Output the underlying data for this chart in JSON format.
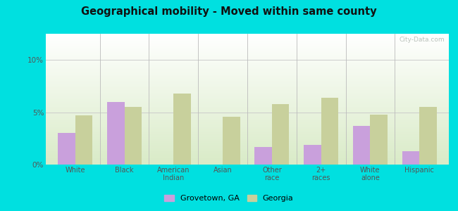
{
  "title": "Geographical mobility - Moved within same county",
  "categories": [
    "White",
    "Black",
    "American\nIndian",
    "Asian",
    "Other\nrace",
    "2+\nraces",
    "White\nalone",
    "Hispanic"
  ],
  "grovetown_values": [
    3.0,
    6.0,
    0,
    0,
    1.7,
    1.9,
    3.7,
    1.3
  ],
  "georgia_values": [
    4.7,
    5.5,
    6.8,
    4.6,
    5.8,
    6.4,
    4.8,
    5.5
  ],
  "grovetown_color": "#c9a0dc",
  "georgia_color": "#c8d09c",
  "ylim": [
    0,
    12.5
  ],
  "yticks": [
    0,
    5,
    10
  ],
  "ytick_labels": [
    "0%",
    "5%",
    "10%"
  ],
  "background_outer": "#00e0e0",
  "grid_color": "#cccccc",
  "bar_width": 0.35,
  "legend_label_grovetown": "Grovetown, GA",
  "legend_label_georgia": "Georgia",
  "watermark": "City-Data.com"
}
